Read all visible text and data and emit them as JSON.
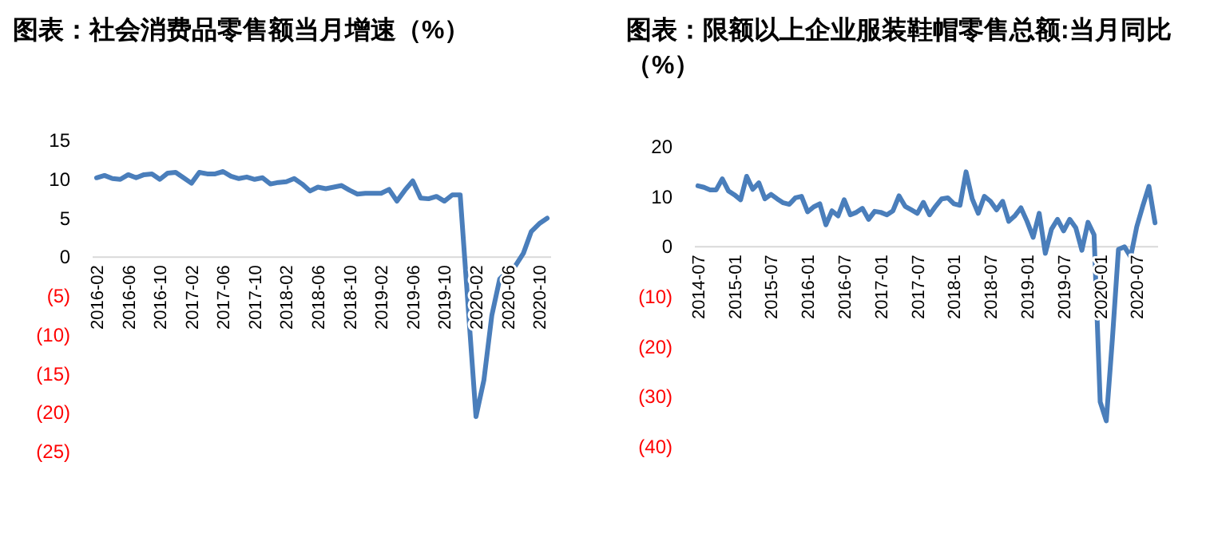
{
  "chart_data": [
    {
      "type": "line",
      "title": "图表：社会消费品零售额当月增速（%）",
      "categories": [
        "2016-02",
        null,
        null,
        null,
        "2016-06",
        null,
        null,
        null,
        "2016-10",
        null,
        null,
        null,
        "2017-02",
        null,
        null,
        null,
        "2017-06",
        null,
        null,
        null,
        "2017-10",
        null,
        null,
        null,
        "2018-02",
        null,
        null,
        null,
        "2018-06",
        null,
        null,
        null,
        "2018-10",
        null,
        null,
        null,
        "2019-02",
        null,
        null,
        null,
        "2019-06",
        null,
        null,
        null,
        "2019-10",
        null,
        null,
        null,
        "2020-02",
        null,
        null,
        null,
        "2020-06",
        null,
        null,
        null,
        "2020-10",
        null
      ],
      "series": [
        {
          "color": "#4a7ebb",
          "values": [
            10.2,
            10.5,
            10.1,
            10.0,
            10.6,
            10.2,
            10.6,
            10.7,
            10.0,
            10.8,
            10.9,
            10.2,
            9.5,
            10.9,
            10.7,
            10.7,
            11.0,
            10.4,
            10.1,
            10.3,
            10.0,
            10.2,
            9.4,
            9.6,
            9.7,
            10.1,
            9.4,
            8.5,
            9.0,
            8.8,
            9.0,
            9.2,
            8.6,
            8.1,
            8.2,
            8.2,
            8.2,
            8.7,
            7.2,
            8.6,
            9.8,
            7.6,
            7.5,
            7.8,
            7.2,
            8.0,
            8.0,
            null,
            -20.5,
            -15.8,
            -7.5,
            -2.8,
            -1.8,
            -1.1,
            0.5,
            3.3,
            4.3,
            5.0
          ]
        }
      ],
      "ylim": [
        -25,
        15
      ],
      "yticks": [
        {
          "value": -25,
          "label": "(25)"
        },
        {
          "value": -20,
          "label": "(20)"
        },
        {
          "value": -15,
          "label": "(15)"
        },
        {
          "value": -10,
          "label": "(10)"
        },
        {
          "value": -5,
          "label": "(5)"
        },
        0,
        5,
        10,
        15
      ]
    },
    {
      "type": "line",
      "title": "图表：限额以上企业服装鞋帽零售总额:当月同比（%）",
      "categories": [
        "2014-07",
        null,
        null,
        null,
        null,
        null,
        "2015-01",
        null,
        null,
        null,
        null,
        null,
        "2015-07",
        null,
        null,
        null,
        null,
        null,
        "2016-01",
        null,
        null,
        null,
        null,
        null,
        "2016-07",
        null,
        null,
        null,
        null,
        null,
        "2017-01",
        null,
        null,
        null,
        null,
        null,
        "2017-07",
        null,
        null,
        null,
        null,
        null,
        "2018-01",
        null,
        null,
        null,
        null,
        null,
        "2018-07",
        null,
        null,
        null,
        null,
        null,
        "2019-01",
        null,
        null,
        null,
        null,
        null,
        "2019-07",
        null,
        null,
        null,
        null,
        null,
        "2020-01",
        null,
        null,
        null,
        null,
        null,
        "2020-07",
        null,
        null,
        null
      ],
      "series": [
        {
          "color": "#4a7ebb",
          "values": [
            12.2,
            11.9,
            11.4,
            11.4,
            13.6,
            11.2,
            10.4,
            9.4,
            14.1,
            11.5,
            12.8,
            9.6,
            10.5,
            9.6,
            8.8,
            8.5,
            9.8,
            10.1,
            7.0,
            8.0,
            8.6,
            4.4,
            7.2,
            6.2,
            9.4,
            6.4,
            6.9,
            7.7,
            5.5,
            7.1,
            6.9,
            6.4,
            7.2,
            10.2,
            8.1,
            7.4,
            6.7,
            8.9,
            6.4,
            8.1,
            9.6,
            9.8,
            8.6,
            8.3,
            15.0,
            9.6,
            6.7,
            10.1,
            9.1,
            7.4,
            9.1,
            5.1,
            6.2,
            7.8,
            5.1,
            1.9,
            6.7,
            -1.3,
            3.5,
            5.5,
            3.2,
            5.5,
            3.8,
            -0.7,
            4.9,
            2.4,
            -31.0,
            -34.8,
            -18.5,
            -0.5,
            0.0,
            -2.0,
            4.0,
            8.2,
            12.1,
            4.8
          ]
        }
      ],
      "ylim": [
        -40,
        20
      ],
      "yticks": [
        {
          "value": -40,
          "label": "(40)"
        },
        {
          "value": -30,
          "label": "(30)"
        },
        {
          "value": -20,
          "label": "(20)"
        },
        {
          "value": -10,
          "label": "(10)"
        },
        0,
        10,
        20
      ]
    }
  ]
}
